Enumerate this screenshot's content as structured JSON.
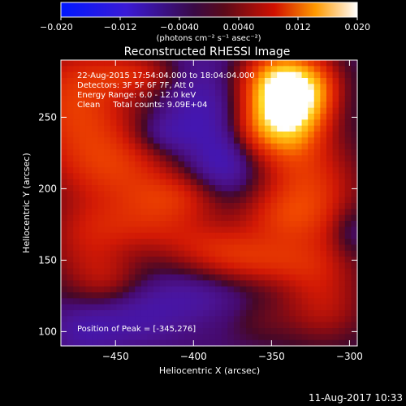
{
  "chart_data": {
    "type": "heatmap",
    "title": "Reconstructed RHESSI Image",
    "xlabel": "Heliocentric X (arcsec)",
    "ylabel": "Heliocentric Y (arcsec)",
    "xlim": [
      -485,
      -295
    ],
    "ylim": [
      90,
      290
    ],
    "xticks": [
      -450,
      -400,
      -350,
      -300
    ],
    "yticks": [
      100,
      150,
      200,
      250
    ],
    "colorbar": {
      "range": [
        -0.02,
        0.02
      ],
      "ticks": [
        "−0.020",
        "−0.012",
        "−0.0040",
        "0.0040",
        "0.012",
        "0.020"
      ],
      "unit_label": "(photons cm⁻² s⁻¹ asec⁻²)"
    },
    "annotations": [
      "22-Aug-2015 17:54:04.000 to 18:04:04.000",
      "Detectors: 3F 5F 6F 7F, Att 0",
      "Energy Range: 6.0 - 12.0 keV",
      "Clean     Total counts: 9.09E+04"
    ],
    "peak_label": "Position of Peak = [-345,276]",
    "peak": {
      "x": -345,
      "y": 276
    },
    "blobs": [
      {
        "x": -340,
        "y": 258,
        "sx": 16,
        "sy": 22,
        "v": 0.024
      },
      {
        "x": -345,
        "y": 276,
        "sx": 22,
        "sy": 14,
        "v": 0.008
      },
      {
        "x": -362,
        "y": 242,
        "sx": 12,
        "sy": 14,
        "v": 0.005
      },
      {
        "x": -318,
        "y": 268,
        "sx": 10,
        "sy": 16,
        "v": 0.004
      },
      {
        "x": -475,
        "y": 260,
        "sx": 26,
        "sy": 30,
        "v": 0.01
      },
      {
        "x": -435,
        "y": 280,
        "sx": 20,
        "sy": 10,
        "v": 0.006
      },
      {
        "x": -448,
        "y": 215,
        "sx": 28,
        "sy": 20,
        "v": 0.008
      },
      {
        "x": -410,
        "y": 195,
        "sx": 22,
        "sy": 12,
        "v": 0.006
      },
      {
        "x": -430,
        "y": 175,
        "sx": 30,
        "sy": 14,
        "v": 0.006
      },
      {
        "x": -470,
        "y": 160,
        "sx": 20,
        "sy": 22,
        "v": 0.005
      },
      {
        "x": -455,
        "y": 135,
        "sx": 16,
        "sy": 14,
        "v": 0.004
      },
      {
        "x": -325,
        "y": 200,
        "sx": 22,
        "sy": 26,
        "v": 0.009
      },
      {
        "x": -345,
        "y": 180,
        "sx": 20,
        "sy": 14,
        "v": 0.005
      },
      {
        "x": -385,
        "y": 160,
        "sx": 26,
        "sy": 12,
        "v": 0.005
      },
      {
        "x": -360,
        "y": 148,
        "sx": 28,
        "sy": 12,
        "v": 0.006
      },
      {
        "x": -320,
        "y": 140,
        "sx": 20,
        "sy": 20,
        "v": 0.005
      },
      {
        "x": -315,
        "y": 112,
        "sx": 18,
        "sy": 16,
        "v": 0.004
      },
      {
        "x": -355,
        "y": 108,
        "sx": 16,
        "sy": 12,
        "v": 0.002
      },
      {
        "x": -395,
        "y": 258,
        "sx": 18,
        "sy": 30,
        "v": -0.005
      },
      {
        "x": -380,
        "y": 215,
        "sx": 14,
        "sy": 16,
        "v": -0.005
      },
      {
        "x": -440,
        "y": 110,
        "sx": 24,
        "sy": 14,
        "v": -0.004
      },
      {
        "x": -470,
        "y": 100,
        "sx": 14,
        "sy": 12,
        "v": -0.003
      },
      {
        "x": -400,
        "y": 125,
        "sx": 22,
        "sy": 12,
        "v": -0.003
      },
      {
        "x": -300,
        "y": 170,
        "sx": 8,
        "sy": 12,
        "v": -0.003
      },
      {
        "x": -420,
        "y": 238,
        "sx": 14,
        "sy": 10,
        "v": -0.004
      }
    ],
    "base_level": -0.0015
  },
  "footer": {
    "timestamp": "11-Aug-2017 10:33"
  }
}
